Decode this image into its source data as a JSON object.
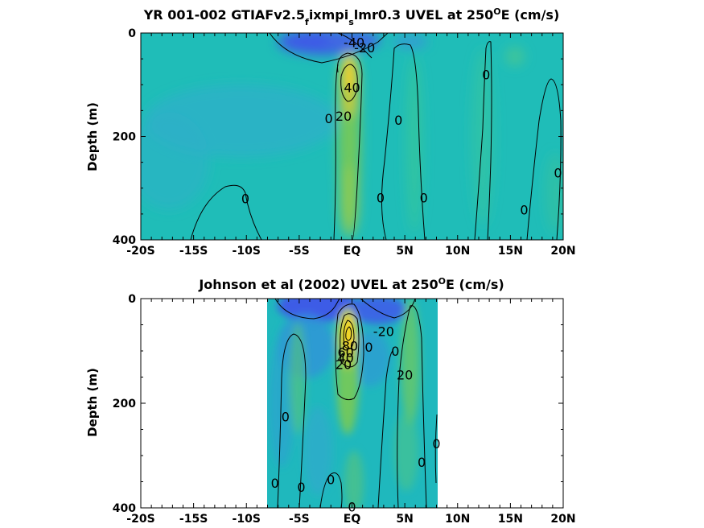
{
  "chart_data": [
    {
      "type": "heatmap",
      "subtype": "filled-contour",
      "title": "YR 001-002 GTIAFv2.5_fixmpi_slmr0.3 UVEL at 250°E (cm/s)",
      "title_parts": {
        "a": "YR 001-002 GTIAFv2.5",
        "sub1": "f",
        "b": "ixmpi",
        "sub2": "s",
        "c": "lmr0.3 UVEL at 250",
        "sup": "O",
        "d": "E (cm/s)"
      },
      "xlabel": "",
      "ylabel": "Depth (m)",
      "x_tick_labels": [
        "-20S",
        "-15S",
        "-10S",
        "-5S",
        "EQ",
        "5N",
        "10N",
        "15N",
        "20N"
      ],
      "x_ticks": [
        -20,
        -15,
        -10,
        -5,
        0,
        5,
        10,
        15,
        20
      ],
      "y_tick_labels": [
        "0",
        "200",
        "400"
      ],
      "y_ticks": [
        0,
        200,
        400
      ],
      "xlim": [
        -20,
        20
      ],
      "ylim": [
        400,
        0
      ],
      "y_reversed": true,
      "data_extent_x": [
        -20,
        20
      ],
      "colormap": "parula",
      "colors": {
        "negative": "#3D5CE6",
        "zero": "#1FBDB8",
        "positive": "#F5D524"
      },
      "contour_labels": [
        {
          "text": "-40",
          "x": 0.2,
          "y": 18
        },
        {
          "text": "-20",
          "x": 1.2,
          "y": 28
        },
        {
          "text": "40",
          "x": 0,
          "y": 105
        },
        {
          "text": "20",
          "x": -0.8,
          "y": 160
        },
        {
          "text": "0",
          "x": -2.2,
          "y": 165
        },
        {
          "text": "0",
          "x": 4.4,
          "y": 168
        },
        {
          "text": "0",
          "x": 12.7,
          "y": 80
        },
        {
          "text": "0",
          "x": 19.5,
          "y": 270
        },
        {
          "text": "0",
          "x": -10.1,
          "y": 320
        },
        {
          "text": "0",
          "x": 2.7,
          "y": 318
        },
        {
          "text": "0",
          "x": 6.8,
          "y": 318
        },
        {
          "text": "0",
          "x": 16.3,
          "y": 342
        }
      ]
    },
    {
      "type": "heatmap",
      "subtype": "filled-contour",
      "title": "Johnson et al (2002) UVEL at 250°E (cm/s)",
      "title_parts": {
        "a": "Johnson et al (2002) UVEL at 250",
        "sup": "O",
        "b": "E (cm/s)"
      },
      "xlabel": "",
      "ylabel": "Depth (m)",
      "x_tick_labels": [
        "-20S",
        "-15S",
        "-10S",
        "-5S",
        "EQ",
        "5N",
        "10N",
        "15N",
        "20N"
      ],
      "x_ticks": [
        -20,
        -15,
        -10,
        -5,
        0,
        5,
        10,
        15,
        20
      ],
      "y_tick_labels": [
        "0",
        "200",
        "400"
      ],
      "y_ticks": [
        0,
        200,
        400
      ],
      "xlim": [
        -20,
        20
      ],
      "ylim": [
        400,
        0
      ],
      "y_reversed": true,
      "data_extent_x": [
        -8,
        8.2
      ],
      "colormap": "parula",
      "colors": {
        "negative": "#3D5CE6",
        "zero": "#1FBDB8",
        "positive": "#F5D524"
      },
      "contour_labels": [
        {
          "text": "-20",
          "x": 3.0,
          "y": 62
        },
        {
          "text": "80",
          "x": -0.2,
          "y": 90
        },
        {
          "text": "60",
          "x": -0.6,
          "y": 102
        },
        {
          "text": "40",
          "x": -0.6,
          "y": 113
        },
        {
          "text": "20",
          "x": -0.8,
          "y": 125
        },
        {
          "text": "0",
          "x": 1.6,
          "y": 92
        },
        {
          "text": "0",
          "x": 4.1,
          "y": 100
        },
        {
          "text": "20",
          "x": 5.0,
          "y": 145
        },
        {
          "text": "0",
          "x": -6.3,
          "y": 225
        },
        {
          "text": "0",
          "x": 8.0,
          "y": 277
        },
        {
          "text": "0",
          "x": 6.6,
          "y": 312
        },
        {
          "text": "0",
          "x": -7.3,
          "y": 352
        },
        {
          "text": "0",
          "x": -4.8,
          "y": 360
        },
        {
          "text": "0",
          "x": -2.0,
          "y": 345
        },
        {
          "text": "0",
          "x": 0.0,
          "y": 398
        }
      ]
    }
  ]
}
